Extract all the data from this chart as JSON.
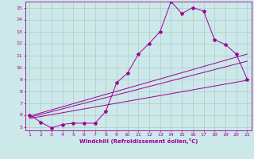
{
  "title": "",
  "xlabel": "Windchill (Refroidissement éolien,°C)",
  "ylabel": "",
  "bg_color": "#cde8e8",
  "line_color": "#990099",
  "grid_color": "#aacccc",
  "xlim": [
    1,
    21
  ],
  "ylim": [
    5,
    15
  ],
  "xticks": [
    1,
    2,
    3,
    4,
    5,
    6,
    7,
    8,
    9,
    10,
    11,
    12,
    13,
    14,
    15,
    16,
    17,
    18,
    19,
    20,
    21
  ],
  "yticks": [
    5,
    6,
    7,
    8,
    9,
    10,
    11,
    12,
    13,
    14,
    15
  ],
  "series": [
    [
      1,
      6.0
    ],
    [
      2,
      5.4
    ],
    [
      3,
      4.9
    ],
    [
      4,
      5.2
    ],
    [
      5,
      5.3
    ],
    [
      6,
      5.3
    ],
    [
      7,
      5.3
    ],
    [
      8,
      6.3
    ],
    [
      9,
      8.7
    ],
    [
      10,
      9.5
    ],
    [
      11,
      11.1
    ],
    [
      12,
      12.0
    ],
    [
      13,
      13.0
    ],
    [
      14,
      15.5
    ],
    [
      15,
      14.5
    ],
    [
      16,
      15.0
    ],
    [
      17,
      14.7
    ],
    [
      18,
      12.3
    ],
    [
      19,
      11.9
    ],
    [
      20,
      11.1
    ],
    [
      21,
      9.0
    ]
  ],
  "line2": [
    [
      1,
      5.9
    ],
    [
      21,
      11.1
    ]
  ],
  "line3": [
    [
      1,
      5.8
    ],
    [
      21,
      10.5
    ]
  ],
  "line4": [
    [
      1,
      5.7
    ],
    [
      21,
      8.9
    ]
  ]
}
